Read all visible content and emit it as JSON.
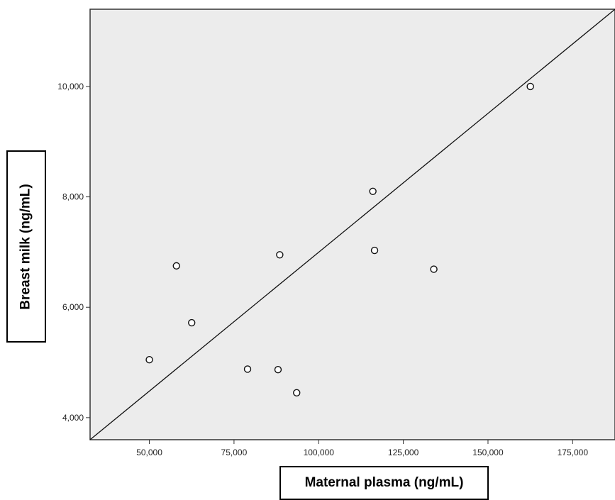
{
  "chart_data": {
    "type": "scatter",
    "xlabel": "Maternal plasma (ng/mL)",
    "ylabel": "Breast milk (ng/mL)",
    "xlim": [
      32500,
      187500
    ],
    "ylim": [
      3600,
      11400
    ],
    "xticks": [
      50000,
      75000,
      100000,
      125000,
      150000,
      175000
    ],
    "xtick_labels": [
      "50,000",
      "75,000",
      "100,000",
      "125,000",
      "150,000",
      "175,000"
    ],
    "yticks": [
      4000,
      6000,
      8000,
      10000
    ],
    "ytick_labels": [
      "4,000",
      "6,000",
      "8,000",
      "10,000"
    ],
    "points": [
      {
        "x": 50000,
        "y": 5050
      },
      {
        "x": 58000,
        "y": 6750
      },
      {
        "x": 62500,
        "y": 5720
      },
      {
        "x": 79000,
        "y": 4880
      },
      {
        "x": 88000,
        "y": 4870
      },
      {
        "x": 88500,
        "y": 6950
      },
      {
        "x": 93500,
        "y": 4450
      },
      {
        "x": 116000,
        "y": 8100
      },
      {
        "x": 116500,
        "y": 7030
      },
      {
        "x": 134000,
        "y": 6690
      },
      {
        "x": 162500,
        "y": 10000
      }
    ],
    "fit_line": [
      {
        "x": 32500,
        "y": 3600
      },
      {
        "x": 187500,
        "y": 11400
      }
    ],
    "grid": false,
    "colors": {
      "plot_bg": "#ececec",
      "marker_stroke": "#111111",
      "line": "#111111"
    }
  }
}
